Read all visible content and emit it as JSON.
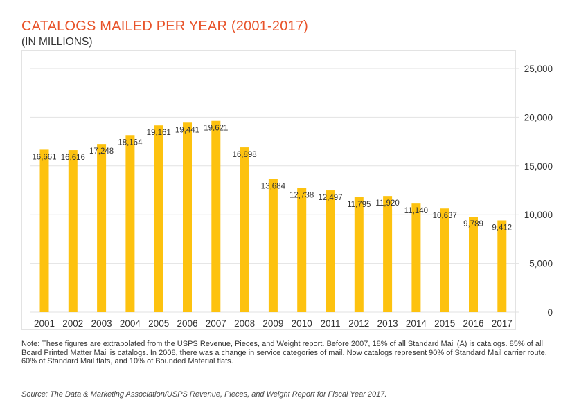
{
  "header": {
    "title": "CATALOGS MAILED PER YEAR (2001-2017)",
    "subtitle": "(IN MILLIONS)"
  },
  "colors": {
    "bar": "#fdc20f",
    "title": "#e8532a",
    "grid": "#e2e2e2",
    "text": "#333333"
  },
  "chart_data": {
    "type": "bar",
    "title": "CATALOGS MAILED PER YEAR (2001-2017)",
    "ylabel": "(IN MILLIONS)",
    "xlabel": "",
    "categories": [
      "2001",
      "2002",
      "2003",
      "2004",
      "2005",
      "2006",
      "2007",
      "2008",
      "2009",
      "2010",
      "2011",
      "2012",
      "2013",
      "2014",
      "2015",
      "2016",
      "2017"
    ],
    "values": [
      16661,
      16616,
      17248,
      18164,
      19161,
      19441,
      19621,
      16898,
      13684,
      12738,
      12497,
      11795,
      11920,
      11140,
      10637,
      9789,
      9412
    ],
    "value_labels": [
      "16,661",
      "16,616",
      "17,248",
      "18,164",
      "19,161",
      "19,441",
      "19,621",
      "16,898",
      "13,684",
      "12,738",
      "12,497",
      "11,795",
      "11,920",
      "11,140",
      "10,637",
      "9,789",
      "9,412"
    ],
    "ylim": [
      0,
      25000
    ],
    "yticks": [
      0,
      5000,
      10000,
      15000,
      20000,
      25000
    ],
    "ytick_labels": [
      "0",
      "5,000",
      "10,000",
      "15,000",
      "20,000",
      "25,000"
    ],
    "y_axis_side": "right",
    "grid": true,
    "legend": "none"
  },
  "footer": {
    "note": "Note: These figures are extrapolated from the USPS Revenue, Pieces, and Weight report. Before 2007, 18% of all Standard Mail (A) is catalogs. 85% of all Board Printed Matter Mail is catalogs. In 2008, there was a change in service categories of mail. Now catalogs represent 90% of Standard Mail carrier route, 60% of Standard Mail flats, and 10% of Bounded Material flats.",
    "source": "Source: The Data & Marketing Association/USPS Revenue, Pieces, and Weight Report for Fiscal Year 2017."
  }
}
